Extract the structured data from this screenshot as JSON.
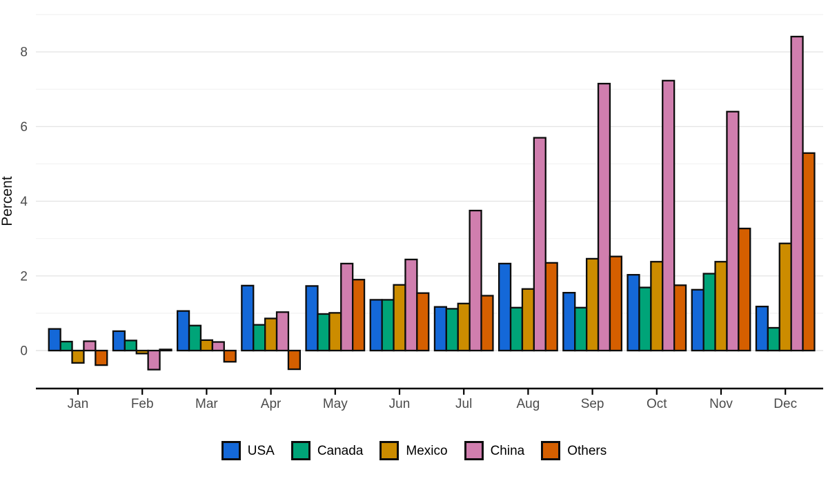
{
  "chart_data": {
    "type": "bar",
    "title": "",
    "xlabel": "",
    "ylabel": "Percent",
    "categories": [
      "Jan",
      "Feb",
      "Mar",
      "Apr",
      "May",
      "Jun",
      "Jul",
      "Aug",
      "Sep",
      "Oct",
      "Nov",
      "Dec"
    ],
    "series": [
      {
        "name": "USA",
        "color": "#1468d8",
        "values": [
          0.58,
          0.52,
          1.06,
          1.74,
          1.73,
          1.36,
          1.17,
          2.33,
          1.55,
          2.03,
          1.63,
          1.18
        ]
      },
      {
        "name": "Canada",
        "color": "#00a478",
        "values": [
          0.24,
          0.27,
          0.67,
          0.69,
          0.98,
          1.36,
          1.12,
          1.15,
          1.15,
          1.69,
          2.06,
          0.61
        ]
      },
      {
        "name": "Mexico",
        "color": "#cc8c00",
        "values": [
          -0.33,
          -0.08,
          0.28,
          0.86,
          1.01,
          1.76,
          1.26,
          1.65,
          2.46,
          2.38,
          2.38,
          2.87
        ]
      },
      {
        "name": "China",
        "color": "#d07eae",
        "values": [
          0.25,
          -0.51,
          0.23,
          1.03,
          2.33,
          2.44,
          3.75,
          5.7,
          7.15,
          7.23,
          6.4,
          8.41
        ]
      },
      {
        "name": "Others",
        "color": "#d55f00",
        "values": [
          -0.39,
          0.03,
          -0.3,
          -0.5,
          1.9,
          1.54,
          1.47,
          2.35,
          2.52,
          1.75,
          3.27,
          5.29
        ]
      }
    ],
    "ylim": [
      -1.0,
      9.2
    ],
    "yticks_major": [
      0,
      2,
      4,
      6,
      8
    ],
    "yticks_minor": [
      1,
      3,
      5,
      7,
      9
    ],
    "grid": "horizontal-only",
    "legend_position": "bottom"
  },
  "style_colors": {
    "background": "#ffffff",
    "grid_major": "#e4e4e4",
    "grid_minor": "#f2f2f2",
    "axis_line": "#000000",
    "bar_outline": "#0d0d0d",
    "tick_label": "#4b4b4b",
    "axis_title": "#111111"
  }
}
